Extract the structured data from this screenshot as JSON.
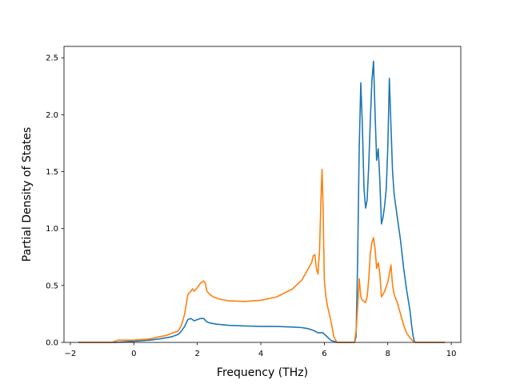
{
  "chart_data": {
    "type": "line",
    "xlabel": "Frequency (THz)",
    "ylabel": "Partial Density of States",
    "xlim": [
      -2.2,
      10.3
    ],
    "ylim": [
      0,
      2.6
    ],
    "xticks": [
      -2,
      0,
      2,
      4,
      6,
      8,
      10
    ],
    "yticks": [
      0.0,
      0.5,
      1.0,
      1.5,
      2.0,
      2.5
    ],
    "xtick_labels": [
      "−2",
      "0",
      "2",
      "4",
      "6",
      "8",
      "10"
    ],
    "ytick_labels": [
      "0.0",
      "0.5",
      "1.0",
      "1.5",
      "2.0",
      "2.5"
    ],
    "grid": false,
    "series": [
      {
        "color": "#1f77b4",
        "x": [
          -1.75,
          -0.6,
          0.0,
          0.5,
          0.8,
          1.0,
          1.2,
          1.4,
          1.5,
          1.6,
          1.7,
          1.8,
          1.9,
          2.0,
          2.1,
          2.2,
          2.3,
          2.4,
          2.6,
          3.0,
          3.5,
          4.0,
          4.5,
          5.0,
          5.3,
          5.5,
          5.7,
          5.8,
          5.95,
          6.05,
          6.2,
          6.4,
          6.6,
          6.8,
          6.95,
          7.0,
          7.05,
          7.1,
          7.15,
          7.2,
          7.25,
          7.3,
          7.35,
          7.4,
          7.45,
          7.5,
          7.55,
          7.6,
          7.65,
          7.7,
          7.75,
          7.8,
          7.85,
          7.9,
          7.95,
          8.0,
          8.05,
          8.1,
          8.15,
          8.2,
          8.3,
          8.4,
          8.5,
          8.6,
          8.7,
          8.75,
          8.8,
          8.85,
          9.0,
          9.5,
          9.8
        ],
        "y": [
          0.0,
          0.0,
          0.01,
          0.02,
          0.03,
          0.04,
          0.05,
          0.07,
          0.1,
          0.14,
          0.2,
          0.21,
          0.19,
          0.2,
          0.21,
          0.21,
          0.18,
          0.17,
          0.16,
          0.15,
          0.145,
          0.14,
          0.14,
          0.135,
          0.13,
          0.12,
          0.1,
          0.085,
          0.085,
          0.06,
          0.02,
          0.0,
          0.0,
          0.0,
          0.0,
          0.05,
          0.7,
          1.7,
          2.28,
          1.9,
          1.35,
          1.18,
          1.25,
          1.55,
          1.95,
          2.3,
          2.47,
          2.0,
          1.6,
          1.7,
          1.42,
          1.04,
          1.1,
          1.2,
          1.35,
          1.7,
          2.32,
          1.9,
          1.5,
          1.3,
          1.1,
          0.9,
          0.65,
          0.45,
          0.28,
          0.15,
          0.05,
          0.0,
          0.0,
          0.0,
          0.0
        ]
      },
      {
        "color": "#ff7f0e",
        "x": [
          -1.75,
          -0.7,
          -0.5,
          0.0,
          0.5,
          0.8,
          1.0,
          1.2,
          1.4,
          1.5,
          1.6,
          1.7,
          1.8,
          1.85,
          1.9,
          2.0,
          2.1,
          2.15,
          2.2,
          2.25,
          2.3,
          2.4,
          2.5,
          2.7,
          3.0,
          3.5,
          4.0,
          4.5,
          5.0,
          5.3,
          5.5,
          5.6,
          5.65,
          5.7,
          5.75,
          5.8,
          5.85,
          5.9,
          5.93,
          5.96,
          6.0,
          6.05,
          6.1,
          6.2,
          6.3,
          6.4,
          6.6,
          6.8,
          6.95,
          7.0,
          7.05,
          7.1,
          7.15,
          7.2,
          7.3,
          7.35,
          7.4,
          7.45,
          7.5,
          7.55,
          7.6,
          7.65,
          7.7,
          7.75,
          7.8,
          7.85,
          7.9,
          8.0,
          8.05,
          8.1,
          8.15,
          8.2,
          8.3,
          8.4,
          8.5,
          8.6,
          8.7,
          8.8,
          8.85,
          9.0,
          9.5,
          9.8
        ],
        "y": [
          0.0,
          0.0,
          0.02,
          0.02,
          0.03,
          0.05,
          0.06,
          0.08,
          0.1,
          0.15,
          0.25,
          0.42,
          0.45,
          0.47,
          0.45,
          0.48,
          0.52,
          0.53,
          0.54,
          0.52,
          0.45,
          0.42,
          0.4,
          0.38,
          0.365,
          0.36,
          0.37,
          0.4,
          0.47,
          0.55,
          0.65,
          0.7,
          0.76,
          0.77,
          0.65,
          0.6,
          0.8,
          1.3,
          1.52,
          1.2,
          0.55,
          0.4,
          0.32,
          0.2,
          0.05,
          0.0,
          0.0,
          0.0,
          0.0,
          0.1,
          0.3,
          0.56,
          0.4,
          0.37,
          0.35,
          0.4,
          0.55,
          0.78,
          0.88,
          0.92,
          0.82,
          0.65,
          0.7,
          0.6,
          0.4,
          0.42,
          0.45,
          0.53,
          0.6,
          0.68,
          0.5,
          0.42,
          0.35,
          0.25,
          0.15,
          0.08,
          0.04,
          0.01,
          0.0,
          0.0,
          0.0,
          0.0
        ]
      }
    ]
  }
}
